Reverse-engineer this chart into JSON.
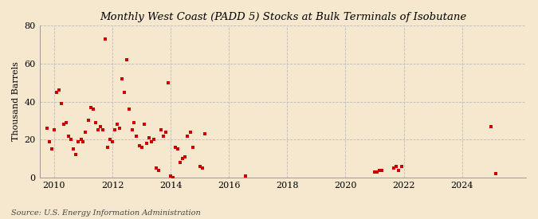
{
  "title": "Monthly West Coast (PADD 5) Stocks at Bulk Terminals of Isobutane",
  "ylabel": "Thousand Barrels",
  "source": "Source: U.S. Energy Information Administration",
  "background_color": "#f5e8ce",
  "marker_color": "#cc0000",
  "xlim": [
    2009.5,
    2026.2
  ],
  "ylim": [
    0,
    80
  ],
  "yticks": [
    0,
    20,
    40,
    60,
    80
  ],
  "xticks": [
    2010,
    2012,
    2014,
    2016,
    2018,
    2020,
    2022,
    2024
  ],
  "data_x": [
    2009.75,
    2009.83,
    2009.92,
    2010.0,
    2010.08,
    2010.17,
    2010.25,
    2010.33,
    2010.42,
    2010.5,
    2010.58,
    2010.67,
    2010.75,
    2010.83,
    2010.92,
    2011.0,
    2011.08,
    2011.17,
    2011.25,
    2011.33,
    2011.42,
    2011.5,
    2011.58,
    2011.67,
    2011.75,
    2011.83,
    2011.92,
    2012.0,
    2012.08,
    2012.17,
    2012.25,
    2012.33,
    2012.42,
    2012.5,
    2012.58,
    2012.67,
    2012.75,
    2012.83,
    2012.92,
    2013.0,
    2013.08,
    2013.17,
    2013.25,
    2013.33,
    2013.42,
    2013.5,
    2013.58,
    2013.67,
    2013.75,
    2013.83,
    2013.92,
    2014.0,
    2014.08,
    2014.17,
    2014.25,
    2014.33,
    2014.42,
    2014.5,
    2014.58,
    2014.67,
    2014.75,
    2015.0,
    2015.08,
    2015.17,
    2016.58,
    2021.0,
    2021.08,
    2021.17,
    2021.25,
    2021.67,
    2021.75,
    2021.83,
    2021.92,
    2025.0,
    2025.17
  ],
  "data_y": [
    26,
    19,
    15,
    25,
    45,
    46,
    39,
    28,
    29,
    22,
    20,
    15,
    12,
    19,
    20,
    19,
    24,
    30,
    37,
    36,
    29,
    25,
    27,
    25,
    73,
    16,
    20,
    19,
    25,
    28,
    26,
    52,
    45,
    62,
    36,
    25,
    29,
    22,
    17,
    16,
    28,
    18,
    21,
    19,
    20,
    5,
    4,
    25,
    22,
    24,
    50,
    1,
    0,
    16,
    15,
    8,
    10,
    11,
    22,
    24,
    16,
    6,
    5,
    23,
    1,
    3,
    3,
    4,
    4,
    5,
    6,
    4,
    6,
    27,
    2
  ]
}
